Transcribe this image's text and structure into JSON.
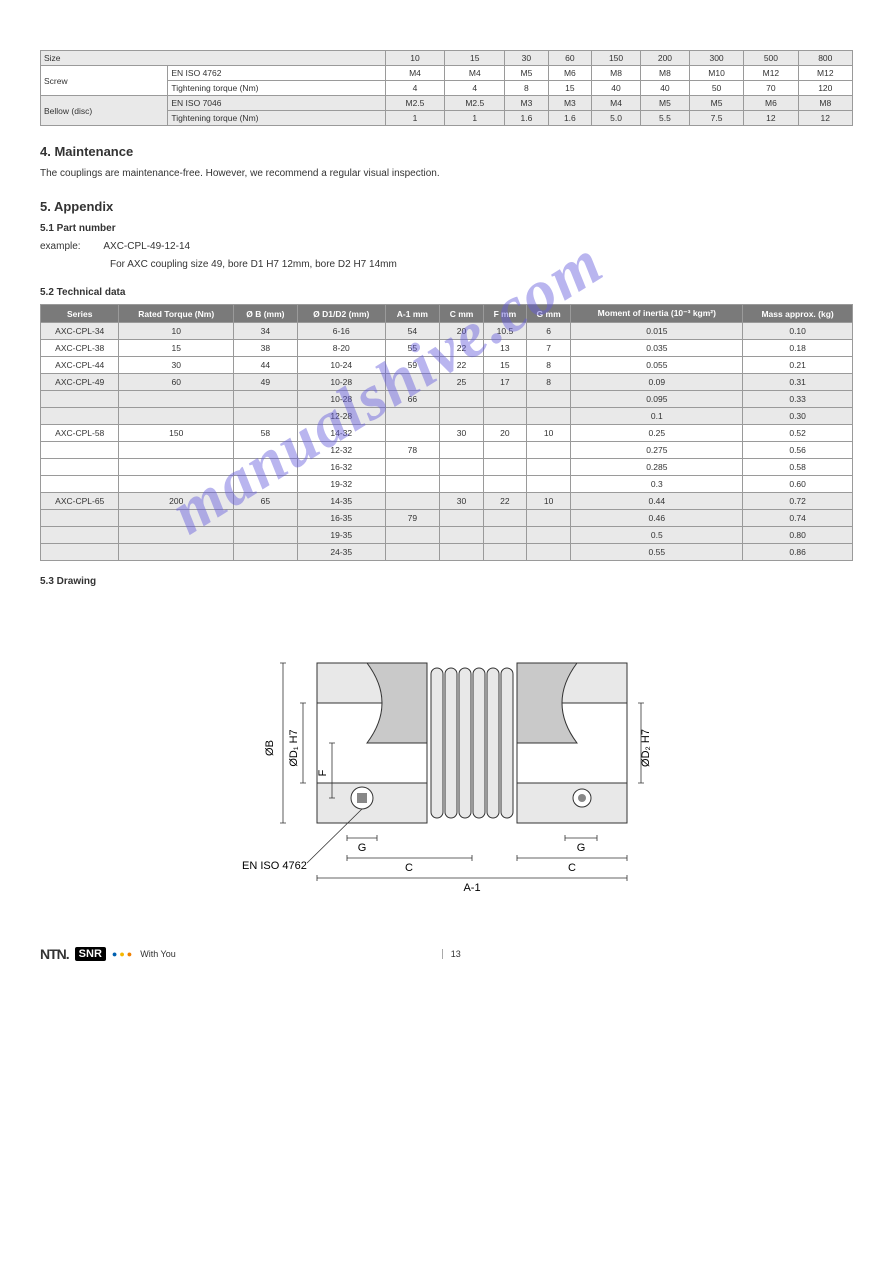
{
  "section4": {
    "title": "4. Maintenance",
    "paragraph": "The couplings are maintenance-free. However, we recommend a regular visual inspection.",
    "table": {
      "header1": [
        "Size",
        "10",
        "15",
        "30",
        "60",
        "150",
        "200",
        "300",
        "500",
        "800"
      ],
      "row_screw_label": "Screw",
      "row_screw_sub1": "EN ISO 4762",
      "row_screw_sub2": "Tightening torque (Nm)",
      "screw_vals1": [
        "M4",
        "M4",
        "M5",
        "M6",
        "M8",
        "M8",
        "M10",
        "M12",
        "M12"
      ],
      "screw_vals2": [
        "4",
        "4",
        "8",
        "15",
        "40",
        "40",
        "50",
        "70",
        "120"
      ],
      "row_disc_label": "Bellow (disc)",
      "row_disc_sub1": "EN ISO 7046",
      "row_disc_sub2": "Tightening torque (Nm)",
      "disc_vals1": [
        "M2.5",
        "M2.5",
        "M3",
        "M3",
        "M4",
        "M5",
        "M5",
        "M6",
        "M8"
      ],
      "disc_vals2": [
        "1",
        "1",
        "1.6",
        "1.6",
        "5.0",
        "5.5",
        "7.5",
        "12",
        "12"
      ]
    }
  },
  "section5": {
    "heading": "5. Appendix",
    "sub51": "5.1 Part number",
    "example_label": "example:",
    "example_value": "AXC-CPL-49-12-14",
    "example_desc": "For AXC coupling size 49, bore D1 H7 12mm, bore D2 H7 14mm",
    "sub52": "5.2 Technical data",
    "table": {
      "header": [
        "Series",
        "Rated Torque (Nm)",
        "Ø B (mm)",
        "Ø D1/D2 (mm)",
        "A-1 mm",
        "C mm",
        "F mm",
        "G mm",
        "Moment of inertia (10⁻³ kgm²)",
        "Mass approx. (kg)"
      ],
      "rows": [
        [
          "AXC-CPL-34",
          "10",
          "34",
          "6-16",
          "54",
          "20",
          "10.5",
          "6",
          "0.015",
          "0.10"
        ],
        [
          "AXC-CPL-38",
          "15",
          "38",
          "8-20",
          "55",
          "22",
          "13",
          "7",
          "0.035",
          "0.18"
        ],
        [
          "AXC-CPL-44",
          "30",
          "44",
          "10-24",
          "59",
          "22",
          "15",
          "8",
          "0.055",
          "0.21"
        ],
        [
          "AXC-CPL-49",
          "60",
          "49",
          "10-28",
          "",
          "25",
          "17",
          "8",
          "0.09",
          "0.31"
        ],
        [
          "",
          "",
          "",
          "10-28",
          "66",
          "",
          "",
          "",
          "0.095",
          "0.33"
        ],
        [
          "",
          "",
          "",
          "12-28",
          "",
          "",
          "",
          "",
          "0.1",
          "0.30"
        ],
        [
          "AXC-CPL-58",
          "150",
          "58",
          "14-32",
          "",
          "30",
          "20",
          "10",
          "0.25",
          "0.52"
        ],
        [
          "",
          "",
          "",
          "12-32",
          "78",
          "",
          "",
          "",
          "0.275",
          "0.56"
        ],
        [
          "",
          "",
          "",
          "16-32",
          "",
          "",
          "",
          "",
          "0.285",
          "0.58"
        ],
        [
          "",
          "",
          "",
          "19-32",
          "",
          "",
          "",
          "",
          "0.3",
          "0.60"
        ],
        [
          "AXC-CPL-65",
          "200",
          "65",
          "14-35",
          "",
          "30",
          "22",
          "10",
          "0.44",
          "0.72"
        ],
        [
          "",
          "",
          "",
          "16-35",
          "79",
          "",
          "",
          "",
          "0.46",
          "0.74"
        ],
        [
          "",
          "",
          "",
          "19-35",
          "",
          "",
          "",
          "",
          "0.5",
          "0.80"
        ],
        [
          "",
          "",
          "",
          "24-35",
          "",
          "",
          "",
          "",
          "0.55",
          "0.86"
        ]
      ],
      "shaded_rows": [
        0,
        3,
        4,
        5,
        10,
        11,
        12,
        13
      ]
    },
    "sub53": "5.3 Drawing",
    "drawing_label_iso": "EN ISO 4762",
    "drawing_labels": {
      "ob": "ØB",
      "od1": "ØD₁ H7",
      "od2": "ØD₂ H7",
      "f": "F",
      "g": "G",
      "c": "C",
      "a": "A-1"
    }
  },
  "footer": {
    "withyou": "With You",
    "page": "13"
  },
  "watermark": "manualshive.com",
  "colors": {
    "shade": "#e9e9e9",
    "dark": "#7a7a7a",
    "border": "#9a9a9a",
    "wm": "rgba(100,90,220,0.45)"
  }
}
